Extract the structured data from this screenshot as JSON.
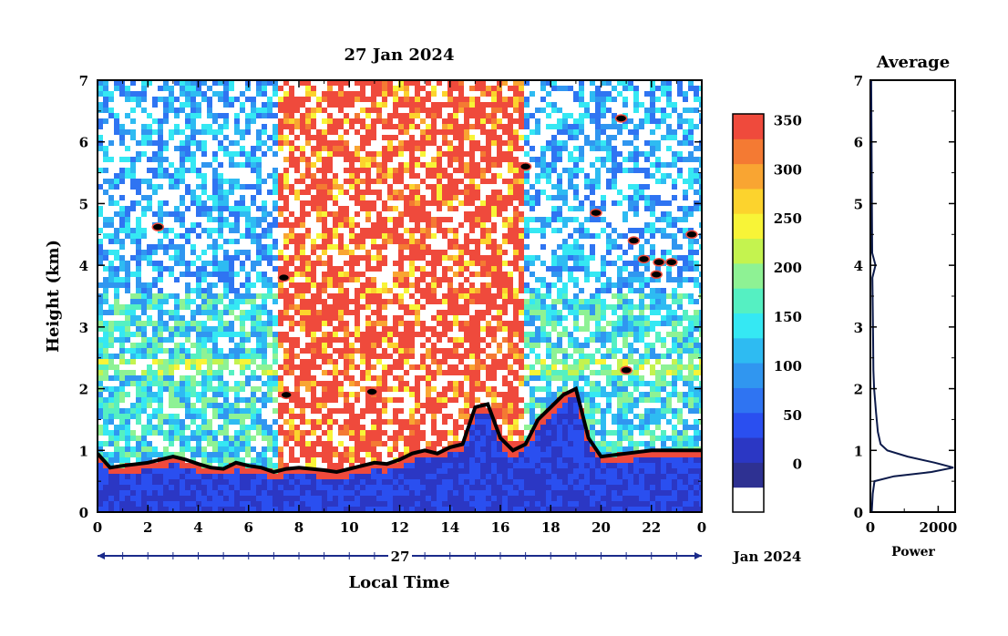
{
  "chart_data": [
    {
      "type": "heatmap",
      "title": "27 Jan 2024",
      "xlabel": "Local Time",
      "ylabel": "Height (km)",
      "xlim": [
        0,
        24
      ],
      "ylim": [
        0,
        7
      ],
      "x_ticks": [
        "0",
        "2",
        "4",
        "6",
        "8",
        "10",
        "12",
        "14",
        "16",
        "18",
        "20",
        "22",
        "0"
      ],
      "y_ticks": [
        "0",
        "1",
        "2",
        "3",
        "4",
        "5",
        "6",
        "7"
      ],
      "date_bar": {
        "day": "27",
        "month_year": "Jan 2024"
      },
      "colorbar": {
        "min": 0,
        "max": 380,
        "tick_labels": [
          "0",
          "50",
          "100",
          "150",
          "200",
          "250",
          "300",
          "350"
        ],
        "colors": [
          "#ffffff",
          "#2e3192",
          "#2b37c4",
          "#2a4ff0",
          "#2f74f2",
          "#3096f0",
          "#2ebbf2",
          "#35e8f3",
          "#55f0c2",
          "#8ef294",
          "#c4f34f",
          "#f8f437",
          "#fcd32d",
          "#f9a532",
          "#f47a33",
          "#ef4a3c"
        ]
      },
      "features": {
        "high_signal_period_hours": [
          7.2,
          17.0
        ],
        "boundary_layer_top_km": [
          [
            0.0,
            0.95
          ],
          [
            0.5,
            0.72
          ],
          [
            1.0,
            0.75
          ],
          [
            2.0,
            0.8
          ],
          [
            2.5,
            0.85
          ],
          [
            3.0,
            0.9
          ],
          [
            3.5,
            0.85
          ],
          [
            4.0,
            0.78
          ],
          [
            4.5,
            0.72
          ],
          [
            5.0,
            0.7
          ],
          [
            5.5,
            0.8
          ],
          [
            6.0,
            0.75
          ],
          [
            6.5,
            0.72
          ],
          [
            7.0,
            0.65
          ],
          [
            7.5,
            0.7
          ],
          [
            8.0,
            0.72
          ],
          [
            8.5,
            0.7
          ],
          [
            9.0,
            0.68
          ],
          [
            9.5,
            0.65
          ],
          [
            10.0,
            0.7
          ],
          [
            10.5,
            0.75
          ],
          [
            11.0,
            0.8
          ],
          [
            11.5,
            0.78
          ],
          [
            12.0,
            0.85
          ],
          [
            12.5,
            0.95
          ],
          [
            13.0,
            1.0
          ],
          [
            13.5,
            0.95
          ],
          [
            14.0,
            1.05
          ],
          [
            14.5,
            1.1
          ],
          [
            15.0,
            1.7
          ],
          [
            15.5,
            1.75
          ],
          [
            16.0,
            1.2
          ],
          [
            16.5,
            1.0
          ],
          [
            17.0,
            1.1
          ],
          [
            17.5,
            1.5
          ],
          [
            18.0,
            1.7
          ],
          [
            18.5,
            1.9
          ],
          [
            19.0,
            2.0
          ],
          [
            19.5,
            1.2
          ],
          [
            20.0,
            0.9
          ],
          [
            21.0,
            0.95
          ],
          [
            22.0,
            1.0
          ],
          [
            23.0,
            1.0
          ],
          [
            24.0,
            1.0
          ]
        ],
        "cloud_patches": [
          {
            "x": 2.4,
            "y": 4.62
          },
          {
            "x": 7.4,
            "y": 3.8
          },
          {
            "x": 10.9,
            "y": 1.95
          },
          {
            "x": 17.0,
            "y": 5.6
          },
          {
            "x": 19.8,
            "y": 4.85
          },
          {
            "x": 20.8,
            "y": 6.38
          },
          {
            "x": 21.3,
            "y": 4.4
          },
          {
            "x": 21.7,
            "y": 4.1
          },
          {
            "x": 22.3,
            "y": 4.05
          },
          {
            "x": 22.8,
            "y": 4.05
          },
          {
            "x": 23.6,
            "y": 4.5
          },
          {
            "x": 22.2,
            "y": 3.85
          },
          {
            "x": 21.0,
            "y": 2.3
          },
          {
            "x": 7.5,
            "y": 1.9
          }
        ]
      }
    },
    {
      "type": "line",
      "title": "Average",
      "xlabel": "Power",
      "ylabel": "",
      "xlim": [
        0,
        2500
      ],
      "ylim": [
        0,
        7
      ],
      "x_ticks": [
        "0",
        "2000"
      ],
      "y_ticks": [
        "0",
        "1",
        "2",
        "3",
        "4",
        "5",
        "6",
        "7"
      ],
      "series": [
        {
          "line_color": "#0c1a4a",
          "points": [
            [
              40,
              0.0
            ],
            [
              70,
              0.3
            ],
            [
              120,
              0.5
            ],
            [
              700,
              0.58
            ],
            [
              1800,
              0.65
            ],
            [
              2450,
              0.72
            ],
            [
              1900,
              0.8
            ],
            [
              1100,
              0.9
            ],
            [
              500,
              1.0
            ],
            [
              300,
              1.1
            ],
            [
              220,
              1.3
            ],
            [
              170,
              1.6
            ],
            [
              140,
              1.8
            ],
            [
              110,
              2.0
            ],
            [
              90,
              2.3
            ],
            [
              80,
              2.8
            ],
            [
              70,
              3.3
            ],
            [
              60,
              3.8
            ],
            [
              150,
              4.0
            ],
            [
              55,
              4.2
            ],
            [
              45,
              4.9
            ],
            [
              40,
              5.5
            ],
            [
              35,
              6.0
            ],
            [
              30,
              6.5
            ],
            [
              25,
              7.0
            ]
          ]
        }
      ]
    }
  ]
}
